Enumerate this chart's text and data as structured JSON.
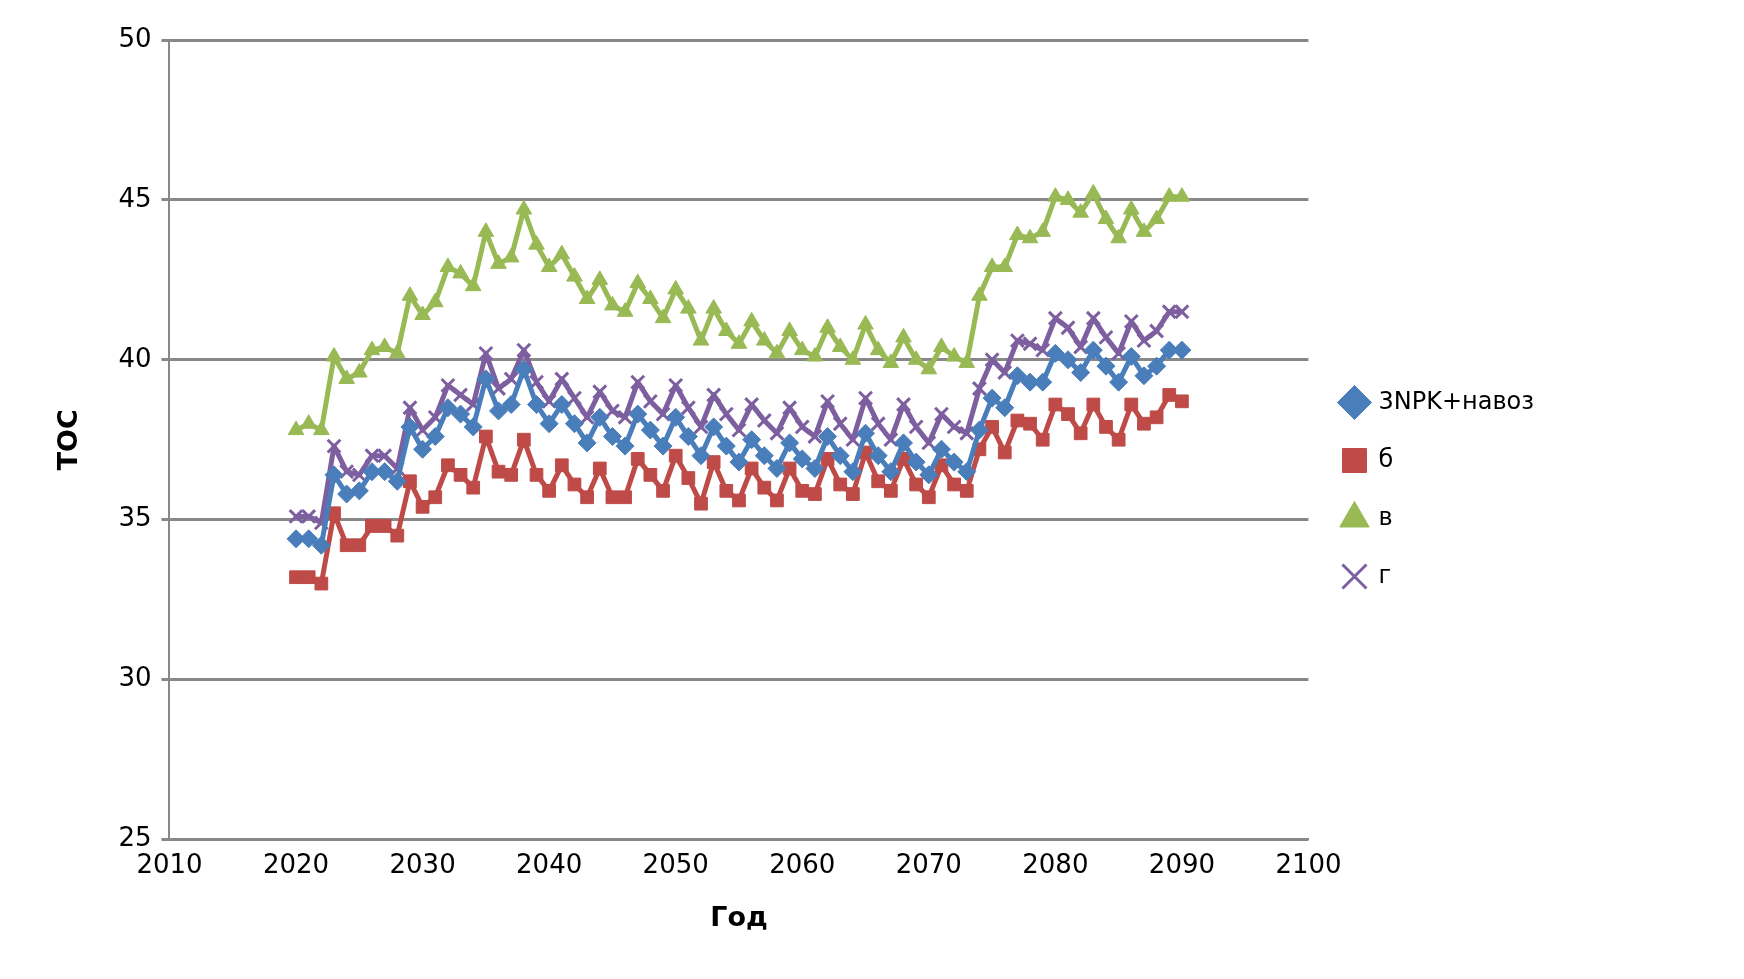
{
  "chart_data": {
    "type": "line",
    "xlabel": "Год",
    "ylabel": "TOC",
    "xlim": [
      2010,
      2100
    ],
    "xticks": [
      2010,
      2020,
      2030,
      2040,
      2050,
      2060,
      2070,
      2080,
      2090,
      2100
    ],
    "ylim": [
      25,
      50
    ],
    "yticks": [
      25,
      30,
      35,
      40,
      45,
      50
    ],
    "grid": "y",
    "legend": "right",
    "x": [
      2020,
      2021,
      2022,
      2023,
      2024,
      2025,
      2026,
      2027,
      2028,
      2029,
      2030,
      2031,
      2032,
      2033,
      2034,
      2035,
      2036,
      2037,
      2038,
      2039,
      2040,
      2041,
      2042,
      2043,
      2044,
      2045,
      2046,
      2047,
      2048,
      2049,
      2050,
      2051,
      2052,
      2053,
      2054,
      2055,
      2056,
      2057,
      2058,
      2059,
      2060,
      2061,
      2062,
      2063,
      2064,
      2065,
      2066,
      2067,
      2068,
      2069,
      2070,
      2071,
      2072,
      2073,
      2074,
      2075,
      2076,
      2077,
      2078,
      2079,
      2080,
      2081,
      2082,
      2083,
      2084,
      2085,
      2086,
      2087,
      2088,
      2089,
      2090
    ],
    "series": [
      {
        "name": "3NPK+навоз",
        "color": "#4a7ebb",
        "marker": "diamond",
        "values": [
          34.4,
          34.4,
          34.2,
          36.4,
          35.8,
          35.9,
          36.5,
          36.5,
          36.2,
          37.9,
          37.2,
          37.6,
          38.5,
          38.3,
          37.9,
          39.4,
          38.4,
          38.6,
          39.7,
          38.6,
          38,
          38.6,
          38,
          37.4,
          38.2,
          37.6,
          37.3,
          38.3,
          37.8,
          37.3,
          38.2,
          37.6,
          37,
          37.9,
          37.3,
          36.8,
          37.5,
          37,
          36.6,
          37.4,
          36.9,
          36.6,
          37.6,
          37,
          36.5,
          37.7,
          37,
          36.5,
          37.4,
          36.8,
          36.4,
          37.2,
          36.8,
          36.5,
          37.8,
          38.8,
          38.5,
          39.5,
          39.3,
          39.3,
          40.2,
          40,
          39.6,
          40.3,
          39.8,
          39.3,
          40.1,
          39.5,
          39.8,
          40.3,
          40.3
        ]
      },
      {
        "name": "б",
        "color": "#be4b48",
        "marker": "square",
        "values": [
          33.2,
          33.2,
          33,
          35.2,
          34.2,
          34.2,
          34.8,
          34.8,
          34.5,
          36.2,
          35.4,
          35.7,
          36.7,
          36.4,
          36,
          37.6,
          36.5,
          36.4,
          37.5,
          36.4,
          35.9,
          36.7,
          36.1,
          35.7,
          36.6,
          35.7,
          35.7,
          36.9,
          36.4,
          35.9,
          37,
          36.3,
          35.5,
          36.8,
          35.9,
          35.6,
          36.6,
          36,
          35.6,
          36.6,
          35.9,
          35.8,
          36.9,
          36.1,
          35.8,
          37.1,
          36.2,
          35.9,
          36.9,
          36.1,
          35.7,
          36.7,
          36.1,
          35.9,
          37.2,
          37.9,
          37.1,
          38.1,
          38,
          37.5,
          38.6,
          38.3,
          37.7,
          38.6,
          37.9,
          37.5,
          38.6,
          38,
          38.2,
          38.9,
          38.7
        ]
      },
      {
        "name": "в",
        "color": "#98b954",
        "marker": "triangle",
        "values": [
          37.8,
          38,
          37.8,
          40.1,
          39.4,
          39.6,
          40.3,
          40.4,
          40.2,
          42,
          41.4,
          41.8,
          42.9,
          42.7,
          42.3,
          44,
          43,
          43.2,
          44.7,
          43.6,
          42.9,
          43.3,
          42.6,
          41.9,
          42.5,
          41.7,
          41.5,
          42.4,
          41.9,
          41.3,
          42.2,
          41.6,
          40.6,
          41.6,
          40.9,
          40.5,
          41.2,
          40.6,
          40.2,
          40.9,
          40.3,
          40.1,
          41,
          40.4,
          40,
          41.1,
          40.3,
          39.9,
          40.7,
          40,
          39.7,
          40.4,
          40.1,
          39.9,
          42,
          42.9,
          42.9,
          43.9,
          43.8,
          44,
          45.1,
          45,
          44.6,
          45.2,
          44.4,
          43.8,
          44.7,
          44,
          44.4,
          45.1,
          45.1
        ]
      },
      {
        "name": "г",
        "color": "#7d5fa0",
        "marker": "cross",
        "values": [
          35.1,
          35.1,
          34.9,
          37.3,
          36.5,
          36.4,
          37,
          37,
          36.6,
          38.5,
          37.8,
          38.2,
          39.2,
          38.9,
          38.6,
          40.2,
          39.1,
          39.4,
          40.3,
          39.3,
          38.7,
          39.4,
          38.8,
          38.2,
          39,
          38.4,
          38.2,
          39.3,
          38.7,
          38.3,
          39.2,
          38.5,
          37.9,
          38.9,
          38.3,
          37.8,
          38.6,
          38.1,
          37.7,
          38.5,
          37.9,
          37.6,
          38.7,
          38,
          37.5,
          38.8,
          38,
          37.5,
          38.6,
          37.9,
          37.4,
          38.3,
          37.9,
          37.7,
          39.1,
          40,
          39.6,
          40.6,
          40.5,
          40.3,
          41.3,
          41,
          40.4,
          41.3,
          40.7,
          40.2,
          41.2,
          40.6,
          40.9,
          41.5,
          41.5
        ]
      }
    ]
  }
}
